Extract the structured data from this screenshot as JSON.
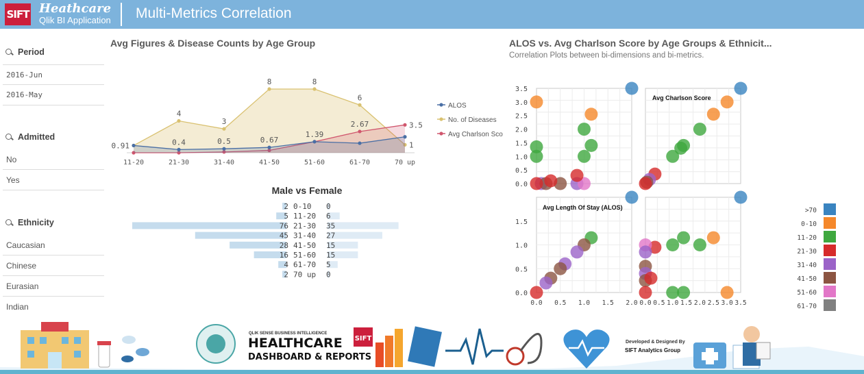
{
  "header": {
    "logo_text": "SIFT",
    "brand_line1": "Heathcare",
    "brand_line2": "Qlik BI Application",
    "title": "Multi-Metrics Correlation",
    "bg_color": "#7db3dc"
  },
  "filters": [
    {
      "label": "Period",
      "items": [
        "2016-Jun",
        "2016-May"
      ]
    },
    {
      "label": "Admitted",
      "items": [
        "No",
        "Yes"
      ]
    },
    {
      "label": "Ethnicity",
      "items": [
        "Caucasian",
        "Chinese",
        "Eurasian",
        "Indian"
      ]
    }
  ],
  "chart_data": [
    {
      "type": "area",
      "title": "Avg Figures & Disease Counts by Age Group",
      "categories": [
        "11-20",
        "21-30",
        "31-40",
        "41-50",
        "51-60",
        "61-70",
        "70 up"
      ],
      "ylim": [
        0,
        8
      ],
      "legend_position": "right",
      "series": [
        {
          "name": "ALOS",
          "color": "#4a6fa5",
          "values": [
            0.91,
            0.4,
            0.5,
            0.67,
            1.39,
            1.2,
            2.0
          ]
        },
        {
          "name": "No. of Diseases",
          "color": "#d9c170",
          "values": [
            0.91,
            4,
            3,
            8,
            8,
            6,
            1
          ]
        },
        {
          "name": "Avg Charlson Sco",
          "color": "#d0566d",
          "values": [
            0,
            0,
            0.1,
            0.3,
            1.39,
            2.67,
            3.5
          ]
        }
      ],
      "data_labels": [
        {
          "index": 0,
          "series": "ALOS",
          "text": "0.91"
        },
        {
          "index": 1,
          "series": "No. of Diseases",
          "text": "4"
        },
        {
          "index": 1,
          "series": "ALOS",
          "text": "0.4"
        },
        {
          "index": 2,
          "series": "No. of Diseases",
          "text": "3"
        },
        {
          "index": 2,
          "series": "ALOS",
          "text": "0.5"
        },
        {
          "index": 3,
          "series": "No. of Diseases",
          "text": "8"
        },
        {
          "index": 3,
          "series": "ALOS",
          "text": "0.67"
        },
        {
          "index": 4,
          "series": "No. of Diseases",
          "text": "8"
        },
        {
          "index": 4,
          "series": "Avg Charlson Sco",
          "text": "1.39"
        },
        {
          "index": 5,
          "series": "No. of Diseases",
          "text": "6"
        },
        {
          "index": 5,
          "series": "Avg Charlson Sco",
          "text": "2.67"
        },
        {
          "index": 6,
          "series": "Avg Charlson Sco",
          "text": "3.5"
        },
        {
          "index": 6,
          "series": "No. of Diseases",
          "text": "1"
        }
      ]
    },
    {
      "type": "bar",
      "title": "Male vs Female",
      "orientation": "butterfly",
      "bar_color": "#7fb1d6",
      "rows": [
        {
          "age": "0-10",
          "male": 2,
          "female": 0
        },
        {
          "age": "11-20",
          "male": 5,
          "female": 6
        },
        {
          "age": "21-30",
          "male": 76,
          "female": 35
        },
        {
          "age": "31-40",
          "male": 45,
          "female": 27
        },
        {
          "age": "41-50",
          "male": 28,
          "female": 15
        },
        {
          "age": "51-60",
          "male": 16,
          "female": 15
        },
        {
          "age": "61-70",
          "male": 4,
          "female": 5
        },
        {
          "age": "70 up",
          "male": 2,
          "female": 0
        }
      ]
    },
    {
      "type": "scatter",
      "title": "ALOS vs. Avg Charlson Score by Age Groups & Ethnicit...",
      "subtitle": "Correlation Plots between bi-dimensions and bi-metrics.",
      "matrix_labels": [
        "Avg Charlson Score",
        "Avg Length Of Stay (ALOS)"
      ],
      "ticks_top": [
        "3.5",
        "3.0",
        "2.5",
        "2.0",
        "1.5",
        "1.0",
        "0.5",
        "0.0"
      ],
      "ticks_bottom_y": [
        "1.5",
        "1.0",
        "0.5",
        "0.0"
      ],
      "ticks_x_left": [
        "0.0",
        "0.5",
        "1.0",
        "1.5",
        "2.0"
      ],
      "ticks_x_right": [
        "0.0",
        "0.5",
        "1.0",
        "1.5",
        "2.0",
        "2.5",
        "3.0",
        "3.5"
      ],
      "legend": [
        {
          "label": ">70",
          "color": "#3a84c0"
        },
        {
          "label": "0-10",
          "color": "#f5882b"
        },
        {
          "label": "11-20",
          "color": "#3fa83f"
        },
        {
          "label": "21-30",
          "color": "#d62b2b"
        },
        {
          "label": "31-40",
          "color": "#9b63c8"
        },
        {
          "label": "41-50",
          "color": "#8c5542"
        },
        {
          "label": "51-60",
          "color": "#e277c8"
        },
        {
          "label": "61-70",
          "color": "#808080"
        }
      ],
      "panels": {
        "top_left": {
          "x": "ALOS",
          "y": "Avg Charlson Score",
          "points": [
            {
              "g": 1,
              "x": 0.0,
              "y": 3.0
            },
            {
              "g": 2,
              "x": 0.0,
              "y": 1.35
            },
            {
              "g": 2,
              "x": 0.0,
              "y": 1.0
            },
            {
              "g": 2,
              "x": 1.0,
              "y": 2.0
            },
            {
              "g": 2,
              "x": 1.0,
              "y": 1.0
            },
            {
              "g": 2,
              "x": 1.15,
              "y": 1.4
            },
            {
              "g": 1,
              "x": 1.15,
              "y": 2.55
            },
            {
              "g": 4,
              "x": 0.1,
              "y": 0.0
            },
            {
              "g": 5,
              "x": 0.2,
              "y": 0.0
            },
            {
              "g": 5,
              "x": 0.5,
              "y": 0.0
            },
            {
              "g": 4,
              "x": 0.85,
              "y": 0.0
            },
            {
              "g": 6,
              "x": 1.0,
              "y": 0.0
            },
            {
              "g": 3,
              "x": 0.85,
              "y": 0.3
            },
            {
              "g": 3,
              "x": 0.3,
              "y": 0.1
            },
            {
              "g": 3,
              "x": 0.0,
              "y": 0.0
            },
            {
              "g": 0,
              "x": 2.0,
              "y": 3.5
            }
          ]
        },
        "top_right": {
          "x": "Avg Charlson Score",
          "y": "Avg Charlson Score",
          "points": [
            {
              "g": 0,
              "x": 3.5,
              "y": 3.5
            },
            {
              "g": 1,
              "x": 3.0,
              "y": 3.0
            },
            {
              "g": 1,
              "x": 2.5,
              "y": 2.55
            },
            {
              "g": 2,
              "x": 2.0,
              "y": 2.0
            },
            {
              "g": 2,
              "x": 1.4,
              "y": 1.4
            },
            {
              "g": 2,
              "x": 1.3,
              "y": 1.3
            },
            {
              "g": 2,
              "x": 1.0,
              "y": 1.0
            },
            {
              "g": 3,
              "x": 0.35,
              "y": 0.35
            },
            {
              "g": 4,
              "x": 0.15,
              "y": 0.15
            },
            {
              "g": 5,
              "x": 0.05,
              "y": 0.05
            },
            {
              "g": 3,
              "x": 0.0,
              "y": 0.0
            }
          ]
        },
        "bottom_left": {
          "x": "ALOS",
          "y": "ALOS",
          "points": [
            {
              "g": 0,
              "x": 2.0,
              "y": 2.0
            },
            {
              "g": 2,
              "x": 1.15,
              "y": 1.15
            },
            {
              "g": 5,
              "x": 1.0,
              "y": 1.0
            },
            {
              "g": 4,
              "x": 0.85,
              "y": 0.85
            },
            {
              "g": 4,
              "x": 0.6,
              "y": 0.6
            },
            {
              "g": 5,
              "x": 0.5,
              "y": 0.5
            },
            {
              "g": 5,
              "x": 0.3,
              "y": 0.3
            },
            {
              "g": 4,
              "x": 0.2,
              "y": 0.2
            },
            {
              "g": 3,
              "x": 0.0,
              "y": 0.0
            }
          ]
        },
        "bottom_right": {
          "x": "Avg Charlson Score",
          "y": "ALOS",
          "points": [
            {
              "g": 0,
              "x": 3.5,
              "y": 2.0
            },
            {
              "g": 1,
              "x": 2.5,
              "y": 1.15
            },
            {
              "g": 1,
              "x": 3.0,
              "y": 0.0
            },
            {
              "g": 2,
              "x": 1.4,
              "y": 1.15
            },
            {
              "g": 2,
              "x": 2.0,
              "y": 1.0
            },
            {
              "g": 2,
              "x": 1.0,
              "y": 1.0
            },
            {
              "g": 2,
              "x": 1.0,
              "y": 0.0
            },
            {
              "g": 2,
              "x": 1.4,
              "y": 0.0
            },
            {
              "g": 3,
              "x": 0.35,
              "y": 0.95
            },
            {
              "g": 6,
              "x": 0.0,
              "y": 1.0
            },
            {
              "g": 4,
              "x": 0.0,
              "y": 0.85
            },
            {
              "g": 5,
              "x": 0.0,
              "y": 0.55
            },
            {
              "g": 4,
              "x": 0.0,
              "y": 0.4
            },
            {
              "g": 5,
              "x": 0.0,
              "y": 0.25
            },
            {
              "g": 3,
              "x": 0.2,
              "y": 0.3
            },
            {
              "g": 3,
              "x": 0.0,
              "y": 0.0
            }
          ]
        }
      }
    }
  ],
  "footer": {
    "banner_sub": "QLIK SENSE BUSINESS INTELLIGENCE",
    "banner_main": "HEALTHCARE",
    "banner_line2": "DASHBOARD & REPORTS",
    "dev_line1": "Developed & Designed By",
    "dev_line2": "SIFT Analytics Group",
    "logo_text": "SIFT"
  }
}
